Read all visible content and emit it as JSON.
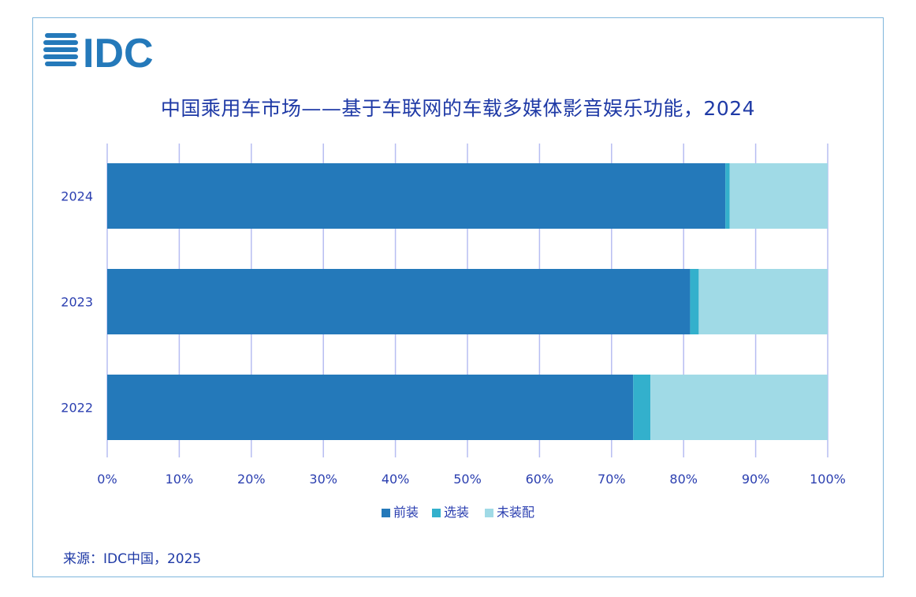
{
  "header": {
    "logo_text": "IDC"
  },
  "source": "来源：IDC中国，2025",
  "colors": {
    "axis_text": "#2b3fb0",
    "grid": "#b7bdf2",
    "title": "#1f3aa6",
    "frame": "#7fb6dc"
  },
  "chart_data": {
    "type": "bar",
    "orientation": "horizontal",
    "stacked": true,
    "title": "中国乘用车市场——基于车联网的车载多媒体影音娱乐功能，2024",
    "categories": [
      "2024",
      "2023",
      "2022"
    ],
    "series": [
      {
        "name": "前装",
        "color": "#2479ba",
        "values": [
          85.8,
          80.9,
          73.0
        ]
      },
      {
        "name": "选装",
        "color": "#33b0cc",
        "values": [
          0.6,
          1.2,
          2.4
        ]
      },
      {
        "name": "未装配",
        "color": "#a0dae6",
        "values": [
          13.6,
          17.9,
          24.6
        ]
      }
    ],
    "xlim": [
      0,
      100
    ],
    "x_ticks": [
      "0%",
      "10%",
      "20%",
      "30%",
      "40%",
      "50%",
      "60%",
      "70%",
      "80%",
      "90%",
      "100%"
    ],
    "grid": true,
    "legend_position": "bottom"
  }
}
